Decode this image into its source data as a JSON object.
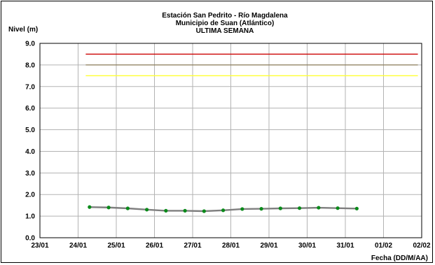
{
  "chart_data": {
    "type": "line",
    "title": [
      "Estación San Pedrito - Río Magdalena",
      "Municipio de Suan (Atlántico)",
      "ULTIMA SEMANA"
    ],
    "ylabel": "Nivel (m)",
    "xlabel": "Fecha (DD/M/AA)",
    "ylim": [
      0.0,
      9.0
    ],
    "y_ticks": [
      "0.0",
      "1.0",
      "2.0",
      "3.0",
      "4.0",
      "5.0",
      "6.0",
      "7.0",
      "8.0",
      "9.0"
    ],
    "x_tick_labels": [
      "23/01",
      "24/01",
      "25/01",
      "26/01",
      "27/01",
      "28/01",
      "29/01",
      "30/01",
      "31/01",
      "01/02",
      "02/02"
    ],
    "xlim": [
      0,
      10
    ],
    "grid": true,
    "reference_lines": [
      {
        "value": 8.5,
        "x_range": [
          1.2,
          9.9
        ],
        "color": "#cc0000"
      },
      {
        "value": 8.0,
        "x_range": [
          1.2,
          9.9
        ],
        "color": "#8b7d5a"
      },
      {
        "value": 7.5,
        "x_range": [
          1.2,
          9.9
        ],
        "color": "#ffff33"
      }
    ],
    "series": [
      {
        "line_color": "#7f7f7f",
        "marker_color": "#0a8a1a",
        "points": [
          {
            "x": 1.3,
            "y": 1.42
          },
          {
            "x": 1.8,
            "y": 1.4
          },
          {
            "x": 2.3,
            "y": 1.36
          },
          {
            "x": 2.8,
            "y": 1.3
          },
          {
            "x": 3.3,
            "y": 1.25
          },
          {
            "x": 3.8,
            "y": 1.25
          },
          {
            "x": 4.3,
            "y": 1.23
          },
          {
            "x": 4.8,
            "y": 1.27
          },
          {
            "x": 5.3,
            "y": 1.33
          },
          {
            "x": 5.8,
            "y": 1.34
          },
          {
            "x": 6.3,
            "y": 1.36
          },
          {
            "x": 6.8,
            "y": 1.37
          },
          {
            "x": 7.3,
            "y": 1.39
          },
          {
            "x": 7.8,
            "y": 1.37
          },
          {
            "x": 8.3,
            "y": 1.35
          }
        ]
      }
    ]
  }
}
